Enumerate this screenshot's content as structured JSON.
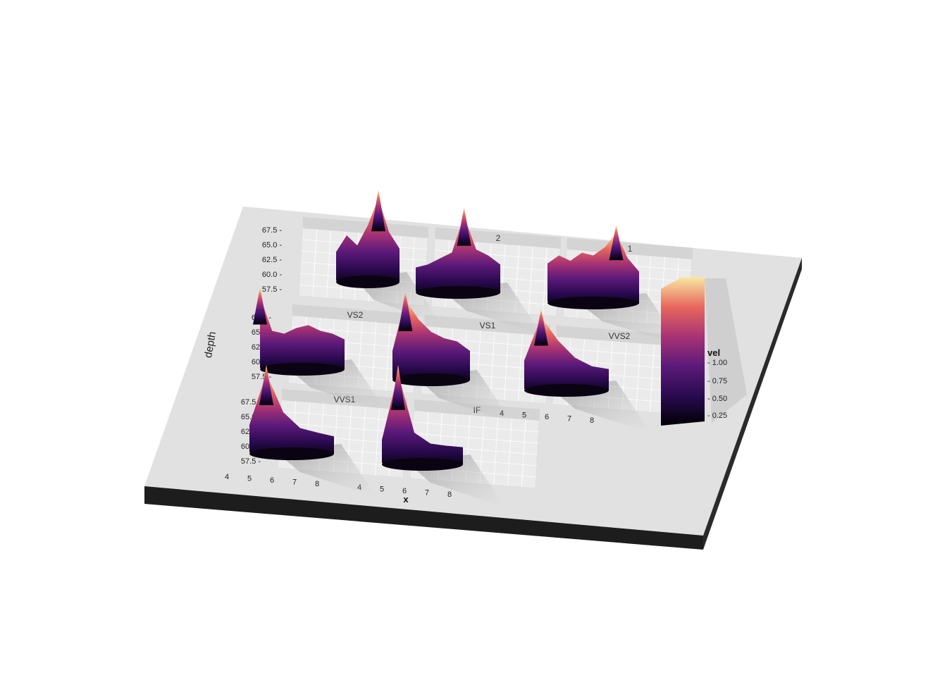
{
  "chart_data": {
    "type": "3d-density-facets",
    "xlabel": "x",
    "ylabel": "depth",
    "x_ticks": [
      "4",
      "5",
      "6",
      "7",
      "8"
    ],
    "y_ticks": [
      "67.5",
      "65.0",
      "62.5",
      "60.0",
      "57.5"
    ],
    "legend": {
      "title": "level",
      "title_visible": "vel",
      "ticks": [
        "1.00",
        "0.75",
        "0.50",
        "0.25"
      ],
      "tick_values": [
        1.0,
        0.75,
        0.5,
        0.25
      ],
      "colorscale": [
        "#000004",
        "#3b0f70",
        "#8c2981",
        "#de4968",
        "#fe9f6d",
        "#fcfdbf"
      ],
      "placement": "right"
    },
    "facets": [
      {
        "label": "",
        "row": 0,
        "col": 0,
        "peak_x": 5.6,
        "peak_level": 0.98
      },
      {
        "label": "2",
        "row": 0,
        "col": 1,
        "peak_x": 5.9,
        "peak_level": 0.85
      },
      {
        "label": "1",
        "row": 0,
        "col": 2,
        "peak_x": 6.4,
        "peak_level": 0.75
      },
      {
        "label": "VS2",
        "row": 1,
        "col": 0,
        "peak_x": 4.4,
        "peak_level": 0.82
      },
      {
        "label": "VS1",
        "row": 1,
        "col": 1,
        "peak_x": 4.6,
        "peak_level": 0.8
      },
      {
        "label": "VVS2",
        "row": 1,
        "col": 2,
        "peak_x": 4.5,
        "peak_level": 0.75
      },
      {
        "label": "VVS1",
        "row": 2,
        "col": 0,
        "peak_x": 4.4,
        "peak_level": 0.82
      },
      {
        "label": "IF",
        "row": 2,
        "col": 1,
        "peak_x": 4.5,
        "peak_level": 0.9
      }
    ]
  }
}
